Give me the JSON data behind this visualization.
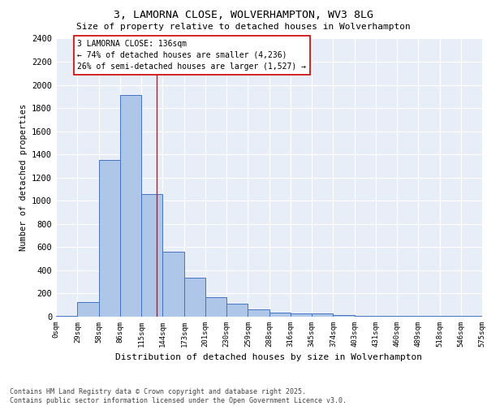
{
  "title_line1": "3, LAMORNA CLOSE, WOLVERHAMPTON, WV3 8LG",
  "title_line2": "Size of property relative to detached houses in Wolverhampton",
  "xlabel": "Distribution of detached houses by size in Wolverhampton",
  "ylabel": "Number of detached properties",
  "footer": "Contains HM Land Registry data © Crown copyright and database right 2025.\nContains public sector information licensed under the Open Government Licence v3.0.",
  "annotation_title": "3 LAMORNA CLOSE: 136sqm",
  "annotation_line2": "← 74% of detached houses are smaller (4,236)",
  "annotation_line3": "26% of semi-detached houses are larger (1,527) →",
  "property_size": 136,
  "bar_values": [
    10,
    125,
    1355,
    1910,
    1055,
    560,
    335,
    170,
    110,
    60,
    35,
    30,
    25,
    15,
    5,
    5,
    5,
    5,
    5,
    10
  ],
  "bin_edges": [
    0,
    29,
    58,
    86,
    115,
    144,
    173,
    201,
    230,
    259,
    288,
    316,
    345,
    374,
    403,
    431,
    460,
    489,
    518,
    546,
    575
  ],
  "tick_labels": [
    "0sqm",
    "29sqm",
    "58sqm",
    "86sqm",
    "115sqm",
    "144sqm",
    "173sqm",
    "201sqm",
    "230sqm",
    "259sqm",
    "288sqm",
    "316sqm",
    "345sqm",
    "374sqm",
    "403sqm",
    "431sqm",
    "460sqm",
    "489sqm",
    "518sqm",
    "546sqm",
    "575sqm"
  ],
  "bar_color": "#aec6e8",
  "bar_edge_color": "#4472c4",
  "vline_color": "#ff0000",
  "annotation_box_edge": "#cc0000",
  "bg_color": "#e8eef7",
  "grid_color": "#ffffff",
  "ylim": [
    0,
    2400
  ],
  "yticks": [
    0,
    200,
    400,
    600,
    800,
    1000,
    1200,
    1400,
    1600,
    1800,
    2000,
    2200,
    2400
  ]
}
